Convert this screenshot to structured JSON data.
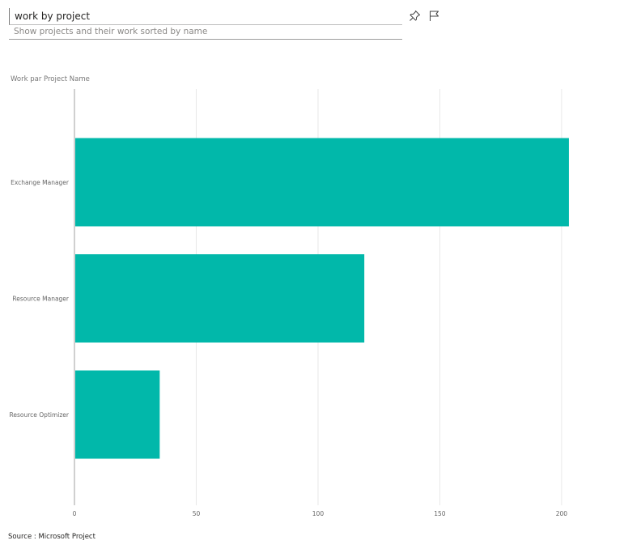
{
  "qna": {
    "query": "work by project",
    "restatement": "Show projects and their work sorted by name"
  },
  "toolbar": {
    "pin_icon": "pin-icon",
    "flag_icon": "flag-icon"
  },
  "footer": {
    "source": "Source : Microsoft Project"
  },
  "colors": {
    "bar": "#01B8AA",
    "gridline": "#e8e8e8",
    "axis": "#a0a0a0"
  },
  "chart_data": {
    "type": "bar",
    "orientation": "horizontal",
    "title": "Work par Project Name",
    "categories": [
      "Exchange Manager",
      "Resource Manager",
      "Resource Optimizer"
    ],
    "values": [
      203,
      119,
      35
    ],
    "xlim": [
      0,
      210
    ],
    "xticks": [
      0,
      50,
      100,
      150,
      200
    ],
    "grid": true,
    "legend": "none"
  }
}
